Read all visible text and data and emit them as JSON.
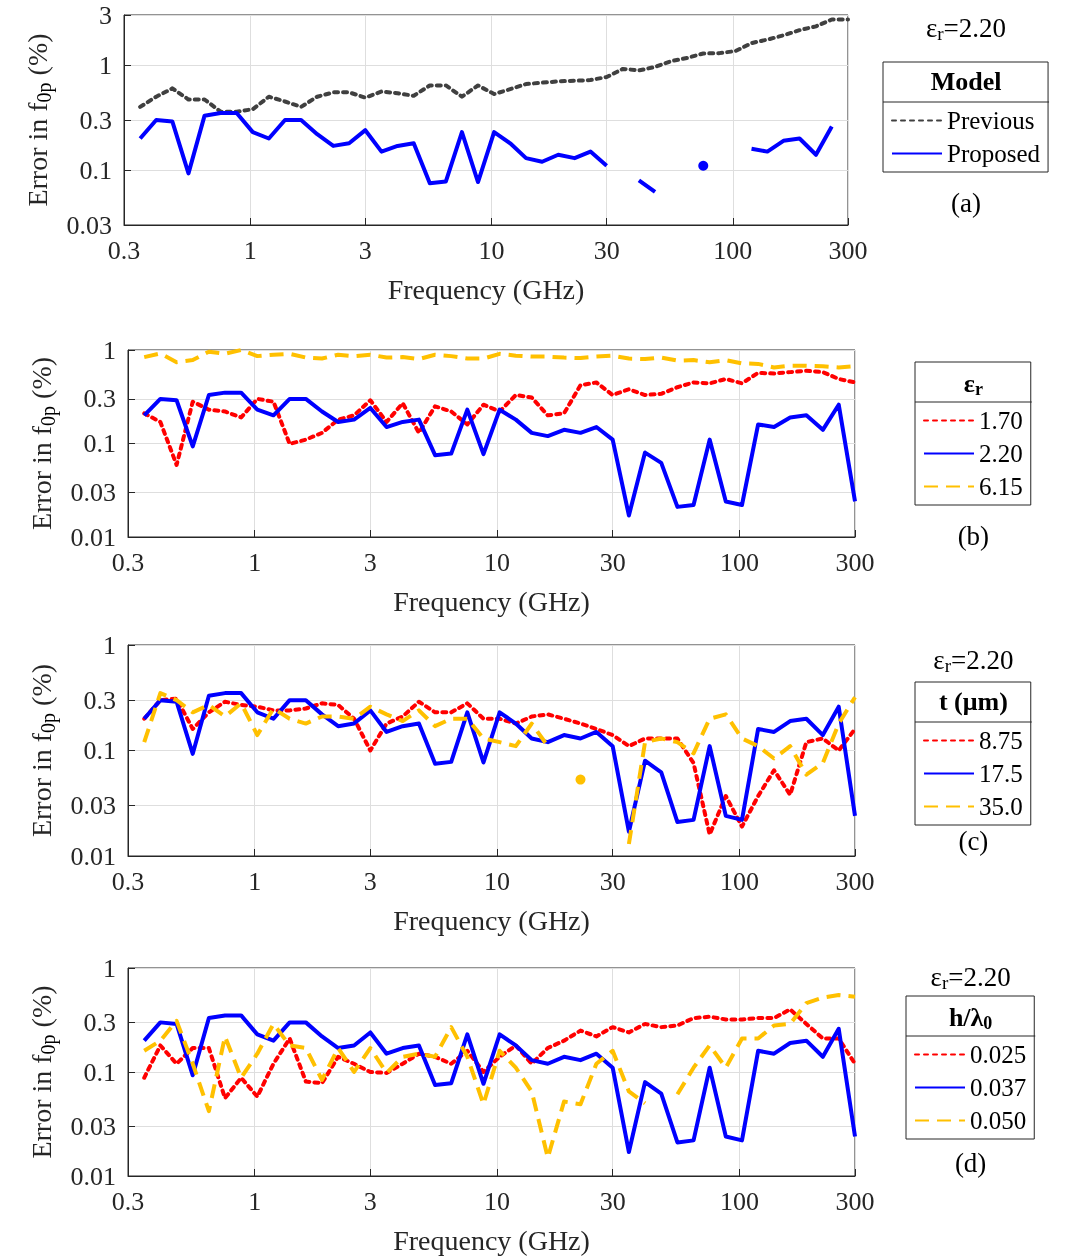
{
  "chart_data": [
    {
      "type": "line",
      "xlabel": "Frequency (GHz)",
      "ylabel": "Error in f$_{0p}$ (%)",
      "legend_title": "Model",
      "annotations": [
        "ε$_{r}$=2.20",
        "(a)"
      ],
      "log": "xy",
      "grid": true,
      "legend": "right",
      "marker": "none",
      "xlim": [
        0.3,
        300
      ],
      "xticks": [
        0.3,
        1,
        3,
        10,
        30,
        100,
        300
      ],
      "ylim": [
        0.03,
        3
      ],
      "yticks": [
        0.03,
        0.1,
        0.3,
        1,
        3
      ],
      "x": [
        0.35,
        0.408,
        0.476,
        0.555,
        0.647,
        0.754,
        0.879,
        1.025,
        1.195,
        1.394,
        1.625,
        1.895,
        2.21,
        2.57,
        3.0,
        3.5,
        4.08,
        4.76,
        5.55,
        6.47,
        7.54,
        8.79,
        10.25,
        11.95,
        13.9,
        16.2,
        18.9,
        22.1,
        25.7,
        30.0,
        35.0,
        40.8,
        47.6,
        55.5,
        64.7,
        75.4,
        87.9,
        102.5,
        119.5,
        139,
        162,
        189,
        221,
        257,
        300
      ],
      "series": [
        {
          "name": "Previous",
          "color": "#404040",
          "line_style": "dotted",
          "values": [
            0.4,
            0.5,
            0.6,
            0.47,
            0.47,
            0.36,
            0.36,
            0.38,
            0.5,
            0.45,
            0.4,
            0.5,
            0.55,
            0.55,
            0.49,
            0.56,
            0.54,
            0.51,
            0.64,
            0.64,
            0.5,
            0.64,
            0.53,
            0.59,
            0.66,
            0.68,
            0.7,
            0.71,
            0.72,
            0.77,
            0.92,
            0.89,
            0.96,
            1.09,
            1.17,
            1.29,
            1.3,
            1.36,
            1.62,
            1.75,
            1.92,
            2.15,
            2.34,
            2.72,
            2.72
          ]
        },
        {
          "name": "Proposed",
          "color": "#0000ff",
          "line_style": "solid",
          "values": [
            0.2,
            0.3,
            0.29,
            0.093,
            0.33,
            0.35,
            0.35,
            0.23,
            0.2,
            0.3,
            0.3,
            0.22,
            0.17,
            0.18,
            0.24,
            0.15,
            0.17,
            0.18,
            0.075,
            0.078,
            0.23,
            0.077,
            0.23,
            0.18,
            0.13,
            0.12,
            0.14,
            0.13,
            0.15,
            0.11,
            null,
            0.08,
            0.062,
            null,
            null,
            0.11,
            null,
            null,
            0.16,
            0.15,
            0.19,
            0.2,
            0.14,
            0.26,
            null
          ]
        }
      ]
    },
    {
      "type": "line",
      "xlabel": "Frequency (GHz)",
      "ylabel": "Error in f$_{0p}$ (%)",
      "legend_title": "ε$_{r}$",
      "annotations": [
        "(b)"
      ],
      "log": "xy",
      "grid": true,
      "legend": "right",
      "marker": "none",
      "xlim": [
        0.3,
        300
      ],
      "xticks": [
        0.3,
        1,
        3,
        10,
        30,
        100,
        300
      ],
      "ylim": [
        0.01,
        1
      ],
      "yticks": [
        0.01,
        0.03,
        0.1,
        0.3,
        1
      ],
      "x": [
        0.35,
        0.408,
        0.476,
        0.555,
        0.647,
        0.754,
        0.879,
        1.025,
        1.195,
        1.394,
        1.625,
        1.895,
        2.21,
        2.57,
        3.0,
        3.5,
        4.08,
        4.76,
        5.55,
        6.47,
        7.54,
        8.79,
        10.25,
        11.95,
        13.9,
        16.2,
        18.9,
        22.1,
        25.7,
        30.0,
        35.0,
        40.8,
        47.6,
        55.5,
        64.7,
        75.4,
        87.9,
        102.5,
        119.5,
        139,
        162,
        189,
        221,
        257,
        300
      ],
      "series": [
        {
          "name": "1.70",
          "color": "#ff0000",
          "line_style": "dotted",
          "values": [
            0.21,
            0.17,
            0.059,
            0.28,
            0.23,
            0.22,
            0.19,
            0.3,
            0.28,
            0.099,
            0.11,
            0.13,
            0.18,
            0.2,
            0.29,
            0.17,
            0.27,
            0.13,
            0.25,
            0.22,
            0.16,
            0.26,
            0.22,
            0.33,
            0.31,
            0.2,
            0.21,
            0.42,
            0.45,
            0.33,
            0.38,
            0.33,
            0.34,
            0.4,
            0.45,
            0.44,
            0.49,
            0.44,
            0.57,
            0.56,
            0.58,
            0.6,
            0.58,
            0.49,
            0.45
          ]
        },
        {
          "name": "2.20",
          "color": "#0000ff",
          "line_style": "solid",
          "values": [
            0.2,
            0.3,
            0.29,
            0.093,
            0.33,
            0.35,
            0.35,
            0.23,
            0.2,
            0.3,
            0.3,
            0.22,
            0.17,
            0.18,
            0.24,
            0.15,
            0.17,
            0.18,
            0.075,
            0.078,
            0.23,
            0.077,
            0.23,
            0.18,
            0.13,
            0.12,
            0.14,
            0.13,
            0.15,
            0.11,
            0.017,
            0.08,
            0.062,
            0.021,
            0.022,
            0.11,
            0.024,
            0.022,
            0.16,
            0.15,
            0.19,
            0.2,
            0.14,
            0.26,
            0.024
          ]
        },
        {
          "name": "6.15",
          "color": "#ffc000",
          "line_style": "dashed",
          "values": [
            0.84,
            0.92,
            0.74,
            0.78,
            0.96,
            0.91,
            1.0,
            0.86,
            0.89,
            0.91,
            0.83,
            0.81,
            0.89,
            0.86,
            0.89,
            0.83,
            0.84,
            0.8,
            0.89,
            0.86,
            0.81,
            0.81,
            0.91,
            0.87,
            0.85,
            0.85,
            0.83,
            0.82,
            0.85,
            0.87,
            0.81,
            0.8,
            0.83,
            0.77,
            0.78,
            0.74,
            0.78,
            0.72,
            0.71,
            0.65,
            0.68,
            0.68,
            0.67,
            0.65,
            0.67
          ]
        }
      ]
    },
    {
      "type": "line",
      "xlabel": "Frequency (GHz)",
      "ylabel": "Error in f$_{0p}$ (%)",
      "legend_title": "t (μm)",
      "annotations": [
        "ε$_{r}$=2.20",
        "(c)"
      ],
      "log": "xy",
      "grid": true,
      "legend": "right",
      "marker": "none",
      "xlim": [
        0.3,
        300
      ],
      "xticks": [
        0.3,
        1,
        3,
        10,
        30,
        100,
        300
      ],
      "ylim": [
        0.01,
        1
      ],
      "yticks": [
        0.01,
        0.03,
        0.1,
        0.3,
        1
      ],
      "x": [
        0.35,
        0.408,
        0.476,
        0.555,
        0.647,
        0.754,
        0.879,
        1.025,
        1.195,
        1.394,
        1.625,
        1.895,
        2.21,
        2.57,
        3.0,
        3.5,
        4.08,
        4.76,
        5.55,
        6.47,
        7.54,
        8.79,
        10.25,
        11.95,
        13.9,
        16.2,
        18.9,
        22.1,
        25.7,
        30.0,
        35.0,
        40.8,
        47.6,
        55.5,
        64.7,
        75.4,
        87.9,
        102.5,
        119.5,
        139,
        162,
        189,
        221,
        257,
        300
      ],
      "series": [
        {
          "name": "8.75",
          "color": "#ff0000",
          "line_style": "dotted",
          "values": [
            0.2,
            0.3,
            0.31,
            0.16,
            0.23,
            0.29,
            0.27,
            0.26,
            0.24,
            0.24,
            0.25,
            0.28,
            0.27,
            0.2,
            0.1,
            0.18,
            0.21,
            0.29,
            0.23,
            0.23,
            0.28,
            0.2,
            0.2,
            0.18,
            0.21,
            0.22,
            0.2,
            0.18,
            0.16,
            0.14,
            0.11,
            0.13,
            0.13,
            0.13,
            0.076,
            0.016,
            0.037,
            0.019,
            0.037,
            0.065,
            0.038,
            0.12,
            0.13,
            0.1,
            0.16
          ]
        },
        {
          "name": "17.5",
          "color": "#0000ff",
          "line_style": "solid",
          "values": [
            0.2,
            0.3,
            0.29,
            0.093,
            0.33,
            0.35,
            0.35,
            0.23,
            0.2,
            0.3,
            0.3,
            0.22,
            0.17,
            0.18,
            0.24,
            0.15,
            0.17,
            0.18,
            0.075,
            0.078,
            0.23,
            0.077,
            0.23,
            0.18,
            0.13,
            0.12,
            0.14,
            0.13,
            0.15,
            0.11,
            0.017,
            0.08,
            0.062,
            0.021,
            0.022,
            0.11,
            0.024,
            0.022,
            0.16,
            0.15,
            0.19,
            0.2,
            0.14,
            0.26,
            0.024
          ]
        },
        {
          "name": "35.0",
          "color": "#ffc000",
          "line_style": "dashed",
          "values": [
            0.12,
            0.35,
            0.3,
            0.23,
            0.27,
            0.21,
            0.28,
            0.14,
            0.25,
            0.2,
            0.18,
            0.21,
            0.21,
            0.2,
            0.26,
            0.22,
            0.19,
            0.24,
            0.17,
            0.2,
            0.2,
            0.13,
            0.12,
            0.11,
            0.18,
            0.11,
            null,
            0.053,
            null,
            null,
            0.013,
            0.12,
            0.13,
            0.12,
            0.094,
            0.2,
            0.22,
            0.13,
            0.11,
            0.084,
            0.11,
            0.059,
            0.076,
            0.18,
            0.32
          ]
        }
      ]
    },
    {
      "type": "line",
      "xlabel": "Frequency (GHz)",
      "ylabel": "Error in f$_{0p}$ (%)",
      "legend_title": "h/λ$_{0}$",
      "annotations": [
        "ε$_{r}$=2.20",
        "(d)"
      ],
      "log": "xy",
      "grid": true,
      "legend": "right",
      "marker": "none",
      "xlim": [
        0.3,
        300
      ],
      "xticks": [
        0.3,
        1,
        3,
        10,
        30,
        100,
        300
      ],
      "ylim": [
        0.01,
        1
      ],
      "yticks": [
        0.01,
        0.03,
        0.1,
        0.3,
        1
      ],
      "x": [
        0.35,
        0.408,
        0.476,
        0.555,
        0.647,
        0.754,
        0.879,
        1.025,
        1.195,
        1.394,
        1.625,
        1.895,
        2.21,
        2.57,
        3.0,
        3.5,
        4.08,
        4.76,
        5.55,
        6.47,
        7.54,
        8.79,
        10.25,
        11.95,
        13.9,
        16.2,
        18.9,
        22.1,
        25.7,
        30.0,
        35.0,
        40.8,
        47.6,
        55.5,
        64.7,
        75.4,
        87.9,
        102.5,
        119.5,
        139,
        162,
        189,
        221,
        257,
        300
      ],
      "series": [
        {
          "name": "0.025",
          "color": "#ff0000",
          "line_style": "dotted",
          "values": [
            0.088,
            0.18,
            0.12,
            0.17,
            0.17,
            0.056,
            0.088,
            0.058,
            0.12,
            0.21,
            0.081,
            0.078,
            0.14,
            0.12,
            0.1,
            0.098,
            0.12,
            0.15,
            0.14,
            0.12,
            0.16,
            0.1,
            0.14,
            0.18,
            0.12,
            0.17,
            0.2,
            0.25,
            0.22,
            0.27,
            0.24,
            0.29,
            0.27,
            0.28,
            0.33,
            0.34,
            0.32,
            0.32,
            0.33,
            0.33,
            0.4,
            0.29,
            0.21,
            0.21,
            0.12
          ]
        },
        {
          "name": "0.037",
          "color": "#0000ff",
          "line_style": "solid",
          "values": [
            0.2,
            0.3,
            0.29,
            0.093,
            0.33,
            0.35,
            0.35,
            0.23,
            0.2,
            0.3,
            0.3,
            0.22,
            0.17,
            0.18,
            0.24,
            0.15,
            0.17,
            0.18,
            0.075,
            0.078,
            0.23,
            0.077,
            0.23,
            0.18,
            0.13,
            0.12,
            0.14,
            0.13,
            0.15,
            0.11,
            0.017,
            0.08,
            0.062,
            0.021,
            0.022,
            0.11,
            0.024,
            0.022,
            0.16,
            0.15,
            0.19,
            0.2,
            0.14,
            0.26,
            0.024
          ]
        },
        {
          "name": "0.050",
          "color": "#ffc000",
          "line_style": "dashed",
          "values": [
            0.16,
            0.2,
            0.31,
            0.12,
            0.042,
            0.22,
            0.088,
            0.15,
            0.29,
            0.18,
            0.17,
            0.084,
            0.17,
            0.1,
            0.17,
            0.098,
            0.14,
            0.15,
            0.14,
            0.27,
            0.14,
            0.049,
            0.16,
            0.11,
            0.065,
            0.015,
            0.052,
            0.049,
            0.12,
            0.16,
            0.065,
            0.05,
            null,
            0.061,
            0.11,
            0.18,
            0.11,
            0.21,
            0.21,
            0.28,
            0.29,
            0.46,
            0.52,
            0.55,
            0.53
          ]
        }
      ]
    }
  ]
}
